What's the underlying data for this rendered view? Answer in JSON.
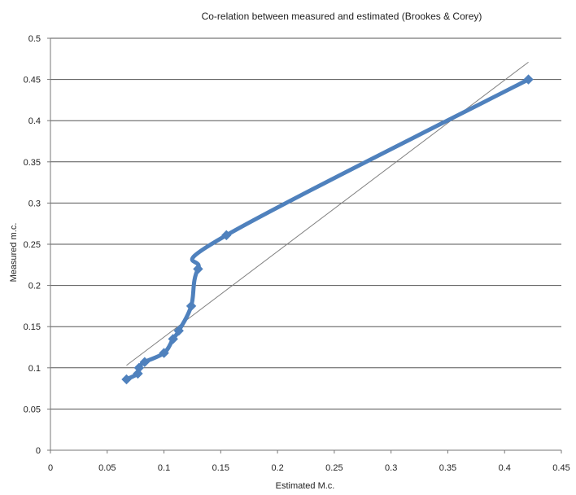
{
  "chart_data": {
    "type": "scatter",
    "title": "Co-relation between measured and estimated (Brookes & Corey)",
    "xlabel": "Estimated M.c.",
    "ylabel": "Measured m.c.",
    "xlim": [
      0,
      0.45
    ],
    "ylim": [
      0,
      0.5
    ],
    "x_ticks": [
      "0",
      "0.05",
      "0.1",
      "0.15",
      "0.2",
      "0.25",
      "0.3",
      "0.35",
      "0.4",
      "0.45"
    ],
    "y_ticks": [
      "0",
      "0.05",
      "0.1",
      "0.15",
      "0.2",
      "0.25",
      "0.3",
      "0.35",
      "0.4",
      "0.45",
      "0.5"
    ],
    "grid": "horizontal",
    "legend": "none",
    "series": [
      {
        "color": "#4f81bd",
        "marker": "diamond",
        "smooth": true,
        "points": [
          [
            0.067,
            0.086
          ],
          [
            0.077,
            0.093
          ],
          [
            0.078,
            0.1
          ],
          [
            0.083,
            0.107
          ],
          [
            0.1,
            0.118
          ],
          [
            0.108,
            0.135
          ],
          [
            0.113,
            0.145
          ],
          [
            0.124,
            0.175
          ],
          [
            0.13,
            0.22
          ],
          [
            0.155,
            0.261
          ],
          [
            0.421,
            0.45
          ]
        ]
      }
    ],
    "trendline": {
      "type": "linear",
      "color": "#808080",
      "x_range": [
        0.067,
        0.421
      ],
      "y_range": [
        0.103,
        0.471
      ]
    }
  }
}
